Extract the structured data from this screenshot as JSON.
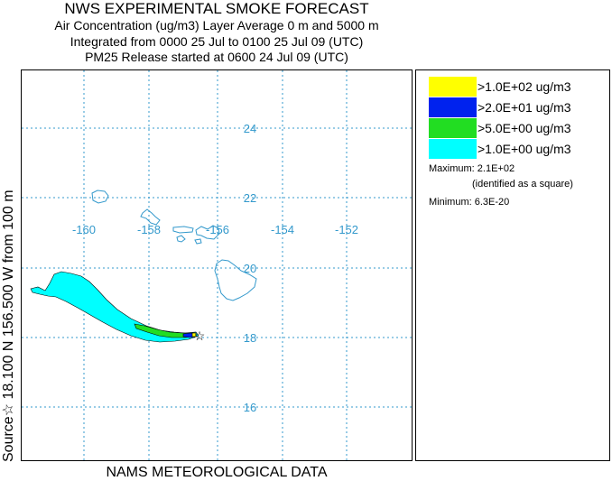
{
  "titles": {
    "main": "NWS EXPERIMENTAL SMOKE FORECAST",
    "line2": "Air Concentration (ug/m3) Layer Average    0 m and  5000 m",
    "line3": "Integrated from 0000 25 Jul to 0100 25 Jul 09 (UTC)",
    "line4": "PM25 Release started at 0600 24 Jul 09 (UTC)"
  },
  "side_label": "Source☆ 18.100  N 156.500  W     from  100 m",
  "footer": "NAMS METEOROLOGICAL DATA",
  "map": {
    "grid_color": "#3399cc",
    "lon_labels": [
      "-160",
      "-158",
      "-156",
      "-154",
      "-152"
    ],
    "lat_labels": [
      "24",
      "22",
      "20",
      "18",
      "16"
    ],
    "source_marker": "star-icon"
  },
  "legend": {
    "entries": [
      {
        "label": ">1.0E+02 ug/m3",
        "color": "#ffff00"
      },
      {
        "label": ">2.0E+01 ug/m3",
        "color": "#0022ee"
      },
      {
        "label": ">5.0E+00 ug/m3",
        "color": "#22dd22"
      },
      {
        "label": ">1.0E+00 ug/m3",
        "color": "#00ffff"
      }
    ],
    "maximum": "Maximum: 2.1E+02",
    "maximum_note": "(identified as a square)",
    "minimum": "Minimum: 6.3E-20"
  }
}
